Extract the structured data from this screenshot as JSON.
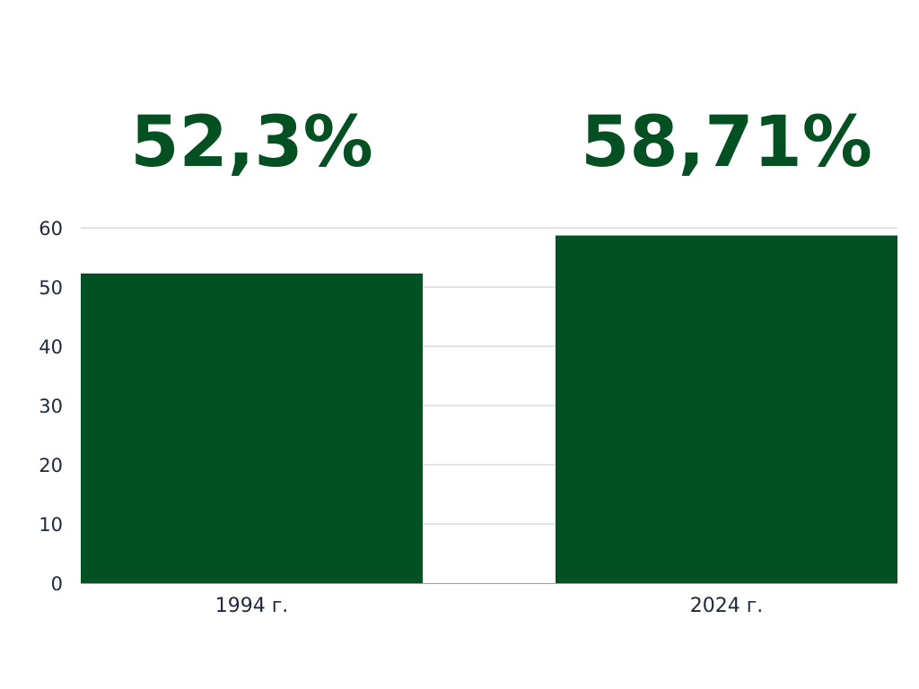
{
  "chart_data": {
    "type": "bar",
    "categories": [
      "1994 г.",
      "2024 г."
    ],
    "values": [
      52.3,
      58.71
    ],
    "value_labels": [
      "52,3%",
      "58,71%"
    ],
    "yticks": [
      "0",
      "10",
      "20",
      "30",
      "40",
      "50",
      "60"
    ],
    "ylim": [
      0,
      60
    ],
    "grid": true,
    "legend": "none",
    "colors": {
      "bar": "#035023",
      "label": "#035023",
      "grid": "#c8c8c8",
      "axis": "#9aa0a6",
      "text": "#1e2a3a"
    }
  }
}
